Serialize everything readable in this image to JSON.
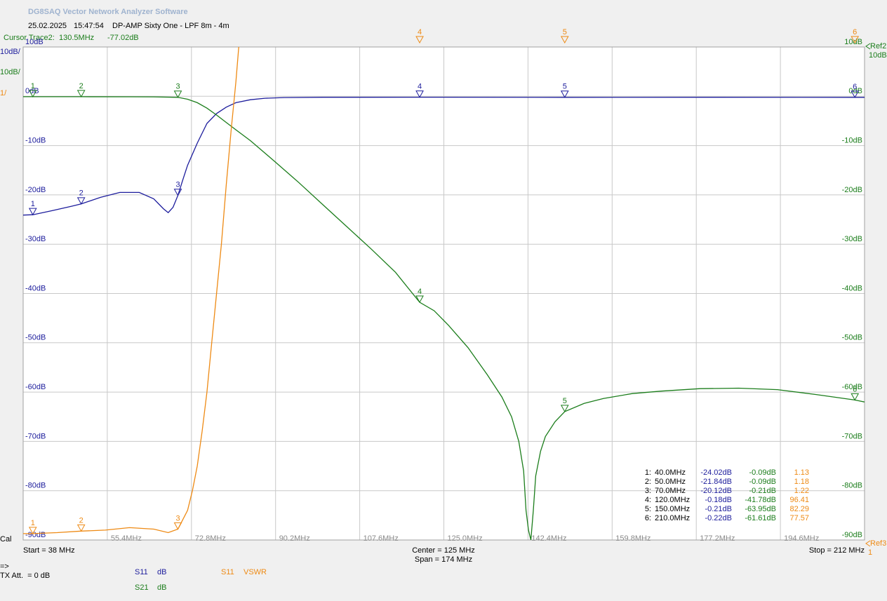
{
  "header": {
    "title": "DG8SAQ Vector Network Analyzer Software",
    "date": "25.02.2025",
    "time": "15:47:54",
    "subject": "DP-AMP Sixty One - LPF 8m - 4m",
    "cursor_label": "Cursor Trace2:",
    "cursor_freq": "130.5MHz",
    "cursor_value": "-77.02dB"
  },
  "chart_data": {
    "type": "line",
    "xlim": [
      38,
      212
    ],
    "xticks": [
      {
        "value": 55.4,
        "label": "55.4MHz"
      },
      {
        "value": 72.8,
        "label": "72.8MHz"
      },
      {
        "value": 90.2,
        "label": "90.2MHz"
      },
      {
        "value": 107.6,
        "label": "107.6MHz"
      },
      {
        "value": 125,
        "label": "125.0MHz"
      },
      {
        "value": 142.4,
        "label": "142.4MHz"
      },
      {
        "value": 159.8,
        "label": "159.8MHz"
      },
      {
        "value": 177.2,
        "label": "177.2MHz"
      },
      {
        "value": 194.6,
        "label": "194.6MHz"
      }
    ],
    "ylim": [
      -90,
      10
    ],
    "yticks": [
      {
        "value": 10,
        "label": "10dB"
      },
      {
        "value": 0,
        "label": "0dB"
      },
      {
        "value": -10,
        "label": "-10dB"
      },
      {
        "value": -20,
        "label": "-20dB"
      },
      {
        "value": -30,
        "label": "-30dB"
      },
      {
        "value": -40,
        "label": "-40dB"
      },
      {
        "value": -50,
        "label": "-50dB"
      },
      {
        "value": -60,
        "label": "-60dB"
      },
      {
        "value": -70,
        "label": "-70dB"
      },
      {
        "value": -80,
        "label": "-80dB"
      },
      {
        "value": -90,
        "label": "-90dB"
      }
    ],
    "y2lim": [
      1,
      11
    ],
    "grid": true,
    "scale_labels": {
      "s11": "10dB/",
      "s21": "10dB/",
      "vswr": "1/",
      "ref2": "Ref2",
      "ref2_scale": "10dB",
      "ref3": "Ref3",
      "ref3_value": "1"
    },
    "series": [
      {
        "name": "S11",
        "unit": "dB",
        "color": "#1c1c9c",
        "x": [
          38,
          40,
          44,
          48,
          50,
          54,
          58,
          62,
          65,
          67,
          68,
          69,
          70,
          71,
          72,
          74,
          76,
          78,
          80,
          82,
          85,
          88,
          92,
          100,
          120,
          150,
          180,
          210,
          212
        ],
        "values": [
          -24.1,
          -24.02,
          -23.2,
          -22.3,
          -21.84,
          -20.5,
          -19.5,
          -19.5,
          -20.8,
          -22.8,
          -23.6,
          -22.5,
          -20.12,
          -17,
          -14,
          -9.5,
          -5.5,
          -3.5,
          -2.2,
          -1.3,
          -0.7,
          -0.4,
          -0.25,
          -0.2,
          -0.18,
          -0.21,
          -0.2,
          -0.22,
          -0.22
        ]
      },
      {
        "name": "S21",
        "unit": "dB",
        "color": "#1b7d1b",
        "x": [
          38,
          40,
          50,
          60,
          65,
          70,
          72,
          74,
          76,
          78,
          80,
          82,
          85,
          90,
          95,
          100,
          105,
          110,
          115,
          120,
          123,
          126,
          130,
          134,
          137,
          139,
          140.5,
          141.5,
          142,
          142.5,
          143,
          143.5,
          144,
          145,
          146,
          148,
          150,
          154,
          158,
          164,
          170,
          178,
          186,
          194,
          202,
          210,
          212
        ],
        "values": [
          -0.09,
          -0.09,
          -0.09,
          -0.1,
          -0.12,
          -0.21,
          -0.6,
          -1.3,
          -2.4,
          -3.8,
          -5.3,
          -6.8,
          -9,
          -13.2,
          -17.5,
          -22,
          -26.5,
          -31,
          -35.7,
          -41.78,
          -43.5,
          -46.5,
          -51,
          -56.5,
          -61,
          -65,
          -70,
          -76,
          -84,
          -88,
          -90,
          -84,
          -77,
          -72,
          -69,
          -66,
          -63.95,
          -62.3,
          -61.3,
          -60.3,
          -59.8,
          -59.3,
          -59.2,
          -59.5,
          -60.5,
          -61.61,
          -62
        ]
      },
      {
        "name": "S11",
        "unit": "VSWR",
        "color": "#ee8a14",
        "axis": "y2",
        "x": [
          38,
          40,
          45,
          50,
          55,
          60,
          65,
          68,
          70,
          72,
          73,
          74,
          75,
          76,
          77,
          78,
          79,
          80,
          81,
          82,
          83
        ],
        "values": [
          1.13,
          1.13,
          1.15,
          1.18,
          1.2,
          1.25,
          1.22,
          1.15,
          1.22,
          1.6,
          2.0,
          2.5,
          3.2,
          4.0,
          5.0,
          6.0,
          7.0,
          8.2,
          9.3,
          10.3,
          11.5
        ]
      }
    ],
    "markers": [
      {
        "label": "1",
        "row_label": "1:",
        "x": 40,
        "x_label": "40.0MHz",
        "s11": -24.02,
        "s11_label": "-24.02dB",
        "s21": -0.09,
        "s21_label": "-0.09dB",
        "vswr": 1.13
      },
      {
        "label": "2",
        "row_label": "2:",
        "x": 50,
        "x_label": "50.0MHz",
        "s11": -21.84,
        "s11_label": "-21.84dB",
        "s21": -0.09,
        "s21_label": "-0.09dB",
        "vswr": 1.18
      },
      {
        "label": "3",
        "row_label": "3:",
        "x": 70,
        "x_label": "70.0MHz",
        "s11": -20.12,
        "s11_label": "-20.12dB",
        "s21": -0.21,
        "s21_label": "-0.21dB",
        "vswr": 1.22
      },
      {
        "label": "4",
        "row_label": "4:",
        "x": 120,
        "x_label": "120.0MHz",
        "s11": -0.18,
        "s11_label": "-0.18dB",
        "s21": -41.78,
        "s21_label": "-41.78dB",
        "vswr": 96.41
      },
      {
        "label": "5",
        "row_label": "5:",
        "x": 150,
        "x_label": "150.0MHz",
        "s11": -0.21,
        "s11_label": "-0.21dB",
        "s21": -63.95,
        "s21_label": "-63.95dB",
        "vswr": 82.29
      },
      {
        "label": "6",
        "row_label": "6:",
        "x": 210,
        "x_label": "210.0MHz",
        "s11": -0.22,
        "s11_label": "-0.22dB",
        "s21": -61.61,
        "s21_label": "-61.61dB",
        "vswr": 77.57
      }
    ]
  },
  "footer": {
    "cal": "Cal",
    "start": "Start = 38 MHz",
    "center": "Center = 125 MHz",
    "span": "Span = 174 MHz",
    "stop": "Stop = 212 MHz",
    "arrow": "=>",
    "tx_att": "TX Att.  = 0 dB"
  }
}
